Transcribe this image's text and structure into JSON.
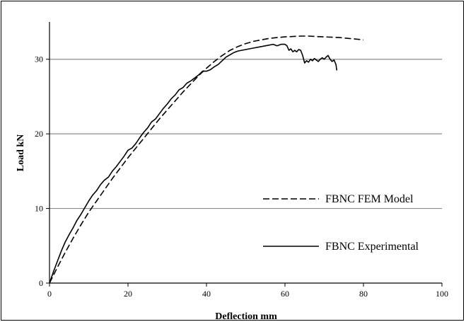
{
  "chart_data": {
    "type": "line",
    "title": "",
    "xlabel": "Deflection mm",
    "ylabel": "Load kN",
    "xlim": [
      0,
      100
    ],
    "ylim": [
      0,
      35
    ],
    "x_ticks": [
      "0",
      "20",
      "40",
      "60",
      "80",
      "100"
    ],
    "y_ticks": [
      "0",
      "10",
      "20",
      "30"
    ],
    "grid": "horizontal major",
    "legend_position": "bottom-right, inside plot",
    "series": [
      {
        "name": "FBNC FEM Model",
        "style": "dashed",
        "color": "#000000",
        "x": [
          0,
          2,
          4,
          6,
          8,
          10,
          12,
          14,
          16,
          18,
          20,
          22,
          24,
          26,
          28,
          30,
          32,
          34,
          36,
          38,
          40,
          42,
          44,
          46,
          48,
          50,
          52,
          54,
          56,
          58,
          60,
          62,
          64,
          66,
          68,
          70,
          72,
          74,
          76,
          78,
          80
        ],
        "y": [
          0,
          2.1,
          4.1,
          6.0,
          7.8,
          9.5,
          11.0,
          12.5,
          14.0,
          15.4,
          16.8,
          18.1,
          19.4,
          20.7,
          22.0,
          23.2,
          24.4,
          25.6,
          26.7,
          27.8,
          28.8,
          29.7,
          30.5,
          31.2,
          31.7,
          32.1,
          32.4,
          32.6,
          32.8,
          32.9,
          33.0,
          33.05,
          33.1,
          33.1,
          33.05,
          33.0,
          32.95,
          32.9,
          32.8,
          32.7,
          32.6
        ]
      },
      {
        "name": "FBNC Experimental",
        "style": "solid",
        "color": "#000000",
        "x": [
          0,
          1,
          2,
          3,
          4,
          5,
          6,
          7,
          8,
          9,
          10,
          11,
          12,
          13,
          14,
          15,
          16,
          17,
          18,
          19,
          20,
          21,
          22,
          23,
          24,
          25,
          26,
          27,
          28,
          29,
          30,
          31,
          32,
          33,
          34,
          35,
          36,
          37,
          38,
          39,
          40,
          41,
          42,
          43,
          44,
          45,
          46,
          47,
          48,
          50,
          52,
          54,
          56,
          57,
          58,
          59,
          60,
          60.5,
          61,
          61.5,
          62,
          62.5,
          63,
          63.5,
          64,
          64.5,
          65,
          65.5,
          66,
          66.5,
          67,
          67.5,
          68,
          68.5,
          69,
          69.5,
          70,
          70.5,
          71,
          71.5,
          72,
          72.5,
          73,
          73.2
        ],
        "y": [
          0,
          1.5,
          2.9,
          4.3,
          5.5,
          6.5,
          7.4,
          8.4,
          9.2,
          10.1,
          11.0,
          11.8,
          12.4,
          13.2,
          13.8,
          14.2,
          15.0,
          15.6,
          16.3,
          17.0,
          17.8,
          18.1,
          18.7,
          19.5,
          20.2,
          20.8,
          21.6,
          22.0,
          22.7,
          23.4,
          24.0,
          24.7,
          25.2,
          25.9,
          26.2,
          26.8,
          27.1,
          27.5,
          27.9,
          28.4,
          28.4,
          28.6,
          29.0,
          29.3,
          29.8,
          30.3,
          30.6,
          30.9,
          31.1,
          31.3,
          31.5,
          31.7,
          31.9,
          32.0,
          31.8,
          32.0,
          32.0,
          31.8,
          31.2,
          31.4,
          31.0,
          31.2,
          31.0,
          31.3,
          31.2,
          30.5,
          29.5,
          29.8,
          29.6,
          30.0,
          29.8,
          30.1,
          29.9,
          29.7,
          30.0,
          30.2,
          30.0,
          30.3,
          30.5,
          30.0,
          29.7,
          29.9,
          29.3,
          28.5
        ]
      }
    ]
  }
}
